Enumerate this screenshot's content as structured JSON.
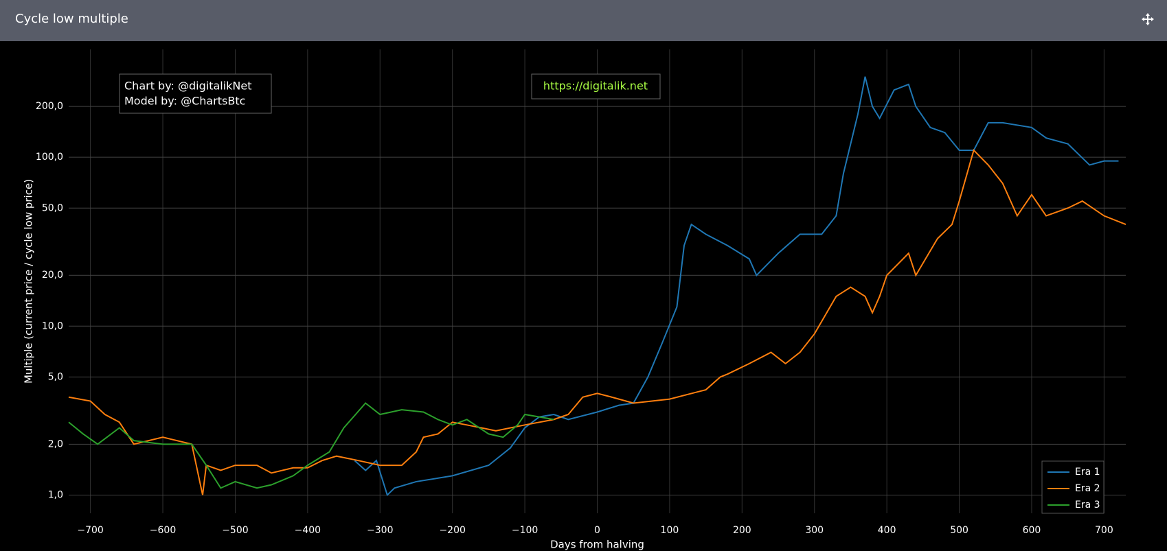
{
  "chart_data": {
    "type": "line",
    "title": "Cycle low multiple",
    "xlabel": "Days from halving",
    "ylabel": "Multiple (current price / cycle low price)",
    "annotations": [
      "Chart by: @digitalikNet",
      "Model by: @ChartsBtc",
      "https://digitalik.net"
    ],
    "log_y": true,
    "grid": true,
    "legend": "lower right",
    "xlim": [
      -730,
      730
    ],
    "ylim": [
      0.78,
      435
    ],
    "xticks": [
      {
        "value": -700,
        "label": "−700"
      },
      {
        "value": -600,
        "label": "−600"
      },
      {
        "value": -500,
        "label": "−500"
      },
      {
        "value": -400,
        "label": "−400"
      },
      {
        "value": -300,
        "label": "−300"
      },
      {
        "value": -200,
        "label": "−200"
      },
      {
        "value": -100,
        "label": "−100"
      },
      0,
      100,
      200,
      300,
      400,
      500,
      600,
      700
    ],
    "yticks": [
      {
        "value": 1,
        "label": "1,0"
      },
      {
        "value": 2,
        "label": "2,0"
      },
      {
        "value": 5,
        "label": "5,0"
      },
      {
        "value": 10,
        "label": "10,0"
      },
      {
        "value": 20,
        "label": "20,0"
      },
      {
        "value": 50,
        "label": "50,0"
      },
      {
        "value": 100,
        "label": "100,0"
      },
      {
        "value": 200,
        "label": "200,0"
      }
    ],
    "series": [
      {
        "name": "Era 1",
        "color": "#1f77b4",
        "x": [
          -335,
          -320,
          -305,
          -290,
          -280,
          -250,
          -200,
          -150,
          -120,
          -100,
          -80,
          -60,
          -40,
          0,
          30,
          50,
          70,
          90,
          110,
          120,
          130,
          150,
          180,
          210,
          220,
          250,
          280,
          310,
          330,
          340,
          360,
          370,
          380,
          390,
          410,
          430,
          440,
          460,
          480,
          500,
          520,
          540,
          560,
          600,
          620,
          650,
          680,
          700,
          720
        ],
        "values": [
          1.6,
          1.4,
          1.6,
          1.0,
          1.1,
          1.2,
          1.3,
          1.5,
          1.9,
          2.5,
          2.9,
          3.0,
          2.8,
          3.1,
          3.4,
          3.5,
          5,
          8,
          13,
          30,
          40,
          35,
          30,
          25,
          20,
          27,
          35,
          35,
          45,
          80,
          180,
          300,
          200,
          170,
          250,
          270,
          200,
          150,
          140,
          110,
          110,
          160,
          160,
          150,
          130,
          120,
          90,
          95,
          95
        ]
      },
      {
        "name": "Era 2",
        "color": "#ff7f0e",
        "x": [
          -730,
          -700,
          -680,
          -660,
          -640,
          -600,
          -560,
          -545,
          -540,
          -520,
          -500,
          -470,
          -450,
          -420,
          -400,
          -380,
          -360,
          -330,
          -300,
          -270,
          -250,
          -240,
          -220,
          -200,
          -180,
          -160,
          -140,
          -100,
          -60,
          -40,
          -20,
          0,
          20,
          50,
          100,
          150,
          170,
          180,
          210,
          240,
          260,
          280,
          300,
          330,
          350,
          370,
          380,
          390,
          400,
          430,
          440,
          470,
          490,
          500,
          520,
          540,
          560,
          580,
          600,
          620,
          650,
          670,
          700,
          730
        ],
        "values": [
          3.8,
          3.6,
          3.0,
          2.7,
          2.0,
          2.2,
          2.0,
          1.0,
          1.5,
          1.4,
          1.5,
          1.5,
          1.35,
          1.45,
          1.45,
          1.6,
          1.7,
          1.6,
          1.5,
          1.5,
          1.8,
          2.2,
          2.3,
          2.7,
          2.6,
          2.5,
          2.4,
          2.6,
          2.8,
          3.0,
          3.8,
          4.0,
          3.8,
          3.5,
          3.7,
          4.2,
          5,
          5.2,
          6,
          7,
          6,
          7,
          9,
          15,
          17,
          15,
          12,
          15,
          20,
          27,
          20,
          33,
          40,
          55,
          110,
          90,
          70,
          45,
          60,
          45,
          50,
          55,
          45,
          40
        ]
      },
      {
        "name": "Era 3",
        "color": "#2ca02c",
        "x": [
          -730,
          -710,
          -690,
          -660,
          -640,
          -600,
          -560,
          -540,
          -520,
          -500,
          -470,
          -450,
          -420,
          -400,
          -370,
          -350,
          -320,
          -300,
          -270,
          -240,
          -220,
          -200,
          -180,
          -150,
          -130,
          -110,
          -100,
          -80,
          -60
        ],
        "values": [
          2.7,
          2.3,
          2.0,
          2.5,
          2.1,
          2.0,
          2.0,
          1.5,
          1.1,
          1.2,
          1.1,
          1.15,
          1.3,
          1.5,
          1.8,
          2.5,
          3.5,
          3.0,
          3.2,
          3.1,
          2.8,
          2.6,
          2.8,
          2.3,
          2.2,
          2.6,
          3.0,
          2.9,
          2.8
        ]
      }
    ]
  }
}
